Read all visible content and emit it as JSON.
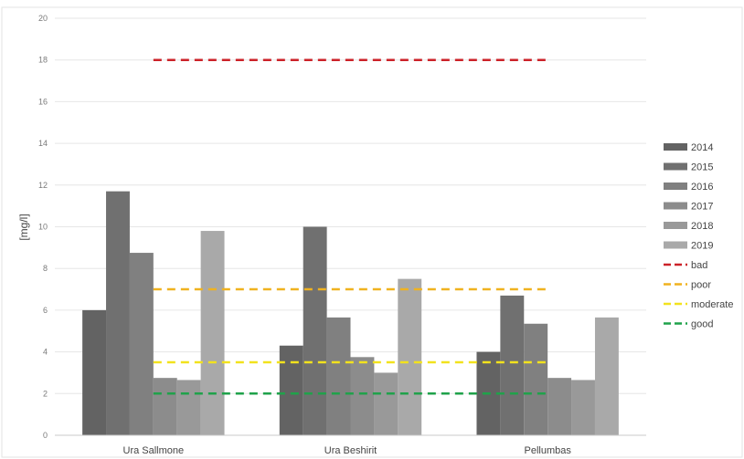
{
  "chart_data": {
    "type": "bar",
    "title": "",
    "xlabel": "",
    "ylabel": "[mg/l]",
    "ylim": [
      0,
      20
    ],
    "yticks": [
      0,
      2,
      4,
      6,
      8,
      10,
      12,
      14,
      16,
      18,
      20
    ],
    "grid": true,
    "legend_position": "right",
    "categories": [
      "Ura Sallmone",
      "Ura Beshirit",
      "Pellumbas"
    ],
    "series": [
      {
        "name": "2014",
        "color": "#636363",
        "values": [
          6.0,
          4.3,
          4.0
        ]
      },
      {
        "name": "2015",
        "color": "#707070",
        "values": [
          11.7,
          10.0,
          6.7
        ]
      },
      {
        "name": "2016",
        "color": "#808080",
        "values": [
          8.75,
          5.65,
          5.35
        ]
      },
      {
        "name": "2017",
        "color": "#8c8c8c",
        "values": [
          2.75,
          3.75,
          2.75
        ]
      },
      {
        "name": "2018",
        "color": "#999999",
        "values": [
          2.65,
          3.0,
          2.65
        ]
      },
      {
        "name": "2019",
        "color": "#a9a9a9",
        "values": [
          9.8,
          7.5,
          5.65
        ]
      }
    ],
    "thresholds": [
      {
        "name": "bad",
        "color": "#cc2229",
        "value": 18
      },
      {
        "name": "poor",
        "color": "#f0b21f",
        "value": 7
      },
      {
        "name": "moderate",
        "color": "#f2e21d",
        "value": 3.5
      },
      {
        "name": "good",
        "color": "#1fa24a",
        "value": 2
      }
    ]
  }
}
